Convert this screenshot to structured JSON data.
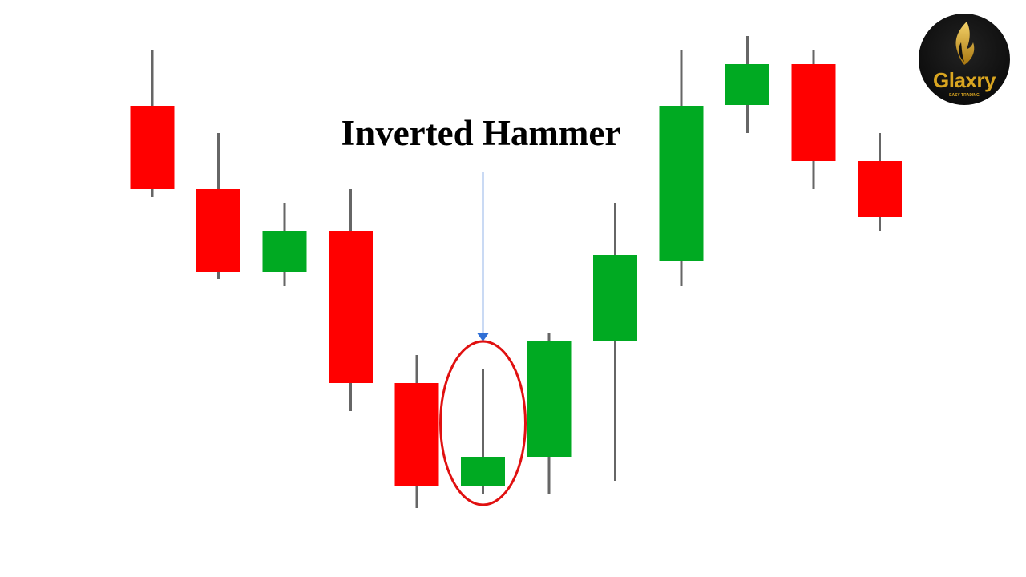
{
  "chart_data": {
    "type": "candlestick",
    "title": "",
    "xlabel": "",
    "ylabel": "",
    "grid": false,
    "colors": {
      "bullish": "#00aa22",
      "bearish": "#ff0000",
      "wick": "#666666",
      "arrow": "#2f6fd6",
      "highlight": "#e01010"
    },
    "candles": [
      {
        "open": 56.8,
        "high": 63.8,
        "low": 45.4,
        "close": 46.4
      },
      {
        "open": 46.4,
        "high": 53.4,
        "low": 35.2,
        "close": 36.1
      },
      {
        "open": 36.1,
        "high": 44.7,
        "low": 34.3,
        "close": 41.2
      },
      {
        "open": 41.2,
        "high": 46.4,
        "low": 18.7,
        "close": 22.2
      },
      {
        "open": 22.2,
        "high": 25.7,
        "low": 6.6,
        "close": 9.4
      },
      {
        "open": 9.4,
        "high": 24.0,
        "low": 8.4,
        "close": 13.0
      },
      {
        "open": 13.0,
        "high": 28.4,
        "low": 8.4,
        "close": 27.4
      },
      {
        "open": 27.4,
        "high": 44.7,
        "low": 10.0,
        "close": 38.2
      },
      {
        "open": 37.4,
        "high": 63.8,
        "low": 34.3,
        "close": 56.8
      },
      {
        "open": 56.9,
        "high": 65.5,
        "low": 53.4,
        "close": 62.0
      },
      {
        "open": 62.0,
        "high": 63.8,
        "low": 46.4,
        "close": 49.9
      },
      {
        "open": 49.9,
        "high": 53.4,
        "low": 41.2,
        "close": 42.9
      }
    ],
    "annotation": {
      "label": "Inverted Hammer",
      "candle_index": 5
    }
  },
  "logo": {
    "name": "Glaxry",
    "tagline": "EASY TRADING"
  }
}
